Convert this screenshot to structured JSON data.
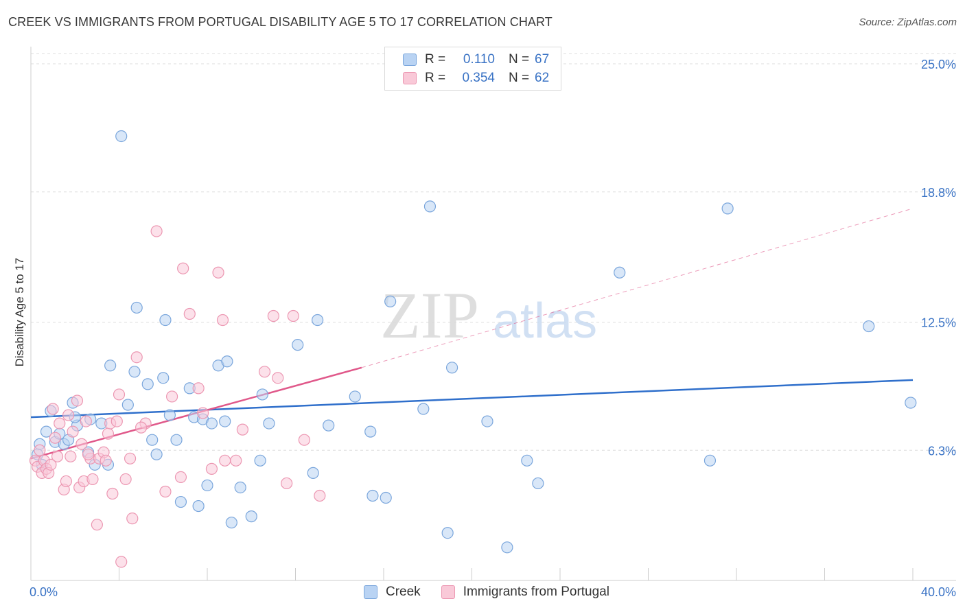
{
  "title": "CREEK VS IMMIGRANTS FROM PORTUGAL DISABILITY AGE 5 TO 17 CORRELATION CHART",
  "source": "Source: ZipAtlas.com",
  "watermark": {
    "zip": "ZIP",
    "atlas": "atlas"
  },
  "legend": {
    "rows": [
      {
        "r_label": "R =",
        "r_value": "0.110",
        "n_label": "N =",
        "n_value": "67"
      },
      {
        "r_label": "R =",
        "r_value": "0.354",
        "n_label": "N =",
        "n_value": "62"
      }
    ]
  },
  "bottom_legend": {
    "series1": "Creek",
    "series2": "Immigrants from Portugal"
  },
  "colors": {
    "creek_fill": "#b9d3f3",
    "creek_stroke": "#7aa6dc",
    "creek_line": "#2f6fcb",
    "portugal_fill": "#f9c9d8",
    "portugal_stroke": "#ec97b2",
    "portugal_line": "#e0588a",
    "axis_label": "#3a73c5",
    "grid": "#dcdcdc"
  },
  "chart_data": {
    "type": "scatter",
    "title": "CREEK VS IMMIGRANTS FROM PORTUGAL DISABILITY AGE 5 TO 17 CORRELATION CHART",
    "xlabel": "",
    "ylabel": "Disability Age 5 to 17",
    "xlim": [
      0,
      40
    ],
    "ylim": [
      0,
      25.5
    ],
    "x_tick_labels": [
      "0.0%",
      "40.0%"
    ],
    "y_ticks": [
      6.3,
      12.5,
      18.8,
      25.0
    ],
    "y_tick_labels": [
      "6.3%",
      "12.5%",
      "18.8%",
      "25.0%"
    ],
    "series": [
      {
        "name": "Creek",
        "r": 0.11,
        "n": 67,
        "trend": {
          "x": [
            0,
            40
          ],
          "y": [
            7.9,
            9.7
          ],
          "dashed_extension": false
        },
        "points": [
          [
            0.3,
            6.1
          ],
          [
            0.5,
            5.6
          ],
          [
            0.4,
            6.6
          ],
          [
            0.7,
            7.2
          ],
          [
            0.9,
            8.2
          ],
          [
            1.1,
            6.7
          ],
          [
            1.3,
            7.1
          ],
          [
            1.5,
            6.6
          ],
          [
            1.7,
            6.8
          ],
          [
            1.9,
            8.6
          ],
          [
            2.1,
            7.5
          ],
          [
            2.6,
            6.2
          ],
          [
            2.7,
            7.8
          ],
          [
            2.9,
            5.6
          ],
          [
            3.5,
            5.6
          ],
          [
            3.6,
            10.4
          ],
          [
            4.1,
            21.5
          ],
          [
            4.4,
            8.5
          ],
          [
            4.7,
            10.1
          ],
          [
            4.8,
            13.2
          ],
          [
            5.3,
            9.5
          ],
          [
            5.5,
            6.8
          ],
          [
            5.7,
            6.1
          ],
          [
            6.0,
            9.8
          ],
          [
            6.1,
            12.6
          ],
          [
            6.3,
            8.0
          ],
          [
            6.6,
            6.8
          ],
          [
            6.8,
            3.8
          ],
          [
            7.2,
            9.3
          ],
          [
            7.4,
            7.9
          ],
          [
            7.6,
            3.6
          ],
          [
            7.8,
            7.8
          ],
          [
            8.0,
            4.6
          ],
          [
            8.2,
            7.6
          ],
          [
            8.5,
            10.4
          ],
          [
            8.8,
            7.7
          ],
          [
            8.9,
            10.6
          ],
          [
            9.1,
            2.8
          ],
          [
            9.5,
            4.5
          ],
          [
            10.0,
            3.1
          ],
          [
            10.4,
            5.8
          ],
          [
            10.5,
            9.0
          ],
          [
            10.8,
            7.6
          ],
          [
            12.1,
            11.4
          ],
          [
            12.8,
            5.2
          ],
          [
            13.0,
            12.6
          ],
          [
            13.5,
            7.5
          ],
          [
            14.7,
            8.9
          ],
          [
            15.4,
            7.2
          ],
          [
            15.5,
            4.1
          ],
          [
            16.1,
            4.0
          ],
          [
            16.3,
            13.5
          ],
          [
            17.8,
            8.3
          ],
          [
            18.1,
            18.1
          ],
          [
            18.9,
            2.3
          ],
          [
            19.1,
            10.3
          ],
          [
            20.7,
            7.7
          ],
          [
            21.6,
            1.6
          ],
          [
            22.5,
            5.8
          ],
          [
            23.0,
            4.7
          ],
          [
            26.7,
            14.9
          ],
          [
            30.8,
            5.8
          ],
          [
            31.6,
            18.0
          ],
          [
            38.0,
            12.3
          ],
          [
            39.9,
            8.6
          ],
          [
            2.0,
            7.9
          ],
          [
            3.2,
            7.6
          ]
        ]
      },
      {
        "name": "Immigrants from Portugal",
        "r": 0.354,
        "n": 62,
        "trend": {
          "x": [
            0,
            15
          ],
          "y": [
            5.9,
            10.3
          ],
          "dashed_extension": true,
          "extension_to": {
            "x": 40,
            "y": 18.0
          }
        },
        "points": [
          [
            0.2,
            5.8
          ],
          [
            0.3,
            5.5
          ],
          [
            0.4,
            6.3
          ],
          [
            0.5,
            5.2
          ],
          [
            0.6,
            5.8
          ],
          [
            0.7,
            5.4
          ],
          [
            0.8,
            5.2
          ],
          [
            1.0,
            8.3
          ],
          [
            1.1,
            6.9
          ],
          [
            1.2,
            6.0
          ],
          [
            1.3,
            7.6
          ],
          [
            1.5,
            4.4
          ],
          [
            1.6,
            4.8
          ],
          [
            1.7,
            8.0
          ],
          [
            1.8,
            6.0
          ],
          [
            1.9,
            7.2
          ],
          [
            2.1,
            8.7
          ],
          [
            2.2,
            4.5
          ],
          [
            2.3,
            6.6
          ],
          [
            2.4,
            4.8
          ],
          [
            2.5,
            7.7
          ],
          [
            2.7,
            5.9
          ],
          [
            2.8,
            4.9
          ],
          [
            3.0,
            2.7
          ],
          [
            3.1,
            5.9
          ],
          [
            3.3,
            6.2
          ],
          [
            3.4,
            5.8
          ],
          [
            3.5,
            7.1
          ],
          [
            3.6,
            7.6
          ],
          [
            3.7,
            4.2
          ],
          [
            3.9,
            7.7
          ],
          [
            4.0,
            9.0
          ],
          [
            4.1,
            0.9
          ],
          [
            4.3,
            4.9
          ],
          [
            4.5,
            5.9
          ],
          [
            4.6,
            3.0
          ],
          [
            4.8,
            10.8
          ],
          [
            5.2,
            7.6
          ],
          [
            5.7,
            16.9
          ],
          [
            6.1,
            4.3
          ],
          [
            6.4,
            8.9
          ],
          [
            6.8,
            5.0
          ],
          [
            6.9,
            15.1
          ],
          [
            7.2,
            12.9
          ],
          [
            7.6,
            9.3
          ],
          [
            7.8,
            8.1
          ],
          [
            8.2,
            5.4
          ],
          [
            8.5,
            14.9
          ],
          [
            8.7,
            12.6
          ],
          [
            8.8,
            5.8
          ],
          [
            9.3,
            5.8
          ],
          [
            9.6,
            7.3
          ],
          [
            10.6,
            10.1
          ],
          [
            11.0,
            12.8
          ],
          [
            11.2,
            9.8
          ],
          [
            11.6,
            4.7
          ],
          [
            11.9,
            12.8
          ],
          [
            12.4,
            6.8
          ],
          [
            13.1,
            4.1
          ],
          [
            0.9,
            5.6
          ],
          [
            2.6,
            6.1
          ],
          [
            5.0,
            7.4
          ]
        ]
      }
    ]
  }
}
